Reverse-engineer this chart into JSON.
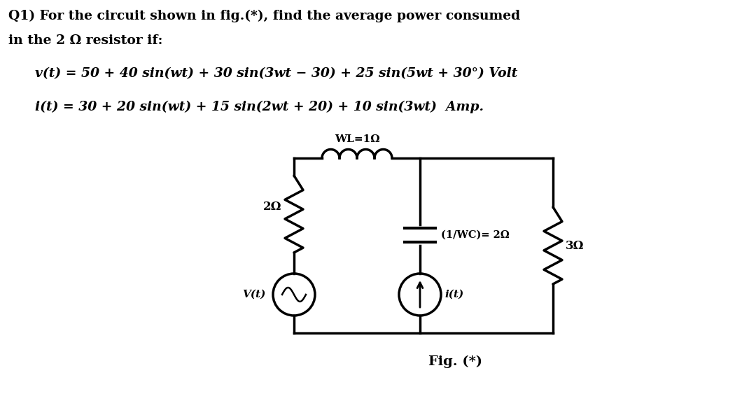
{
  "title_line1": "Q1) For the circuit shown in fig.(*), find the average power consumed",
  "title_line2": "in the 2 Ω resistor if:",
  "eq_v": "v(t) = 50 + 40 sin(wt) + 30 sin(3wt − 30) + 25 sin(5wt + 30°) Volt",
  "eq_i": "i(t) = 30 + 20 sin(wt) + 15 sin(2wt + 20) + 10 sin(3wt)  Amp.",
  "label_inductor": "WL=1Ω",
  "label_resistor_left": "2Ω",
  "label_capacitor": "(1/WC)= 2Ω",
  "label_resistor_right": "3Ω",
  "label_source_v": "V(t)",
  "label_source_i": "i(t)",
  "label_fig": "Fig. (*)",
  "bg_color": "#ffffff",
  "line_color": "#000000",
  "font_color": "#000000"
}
